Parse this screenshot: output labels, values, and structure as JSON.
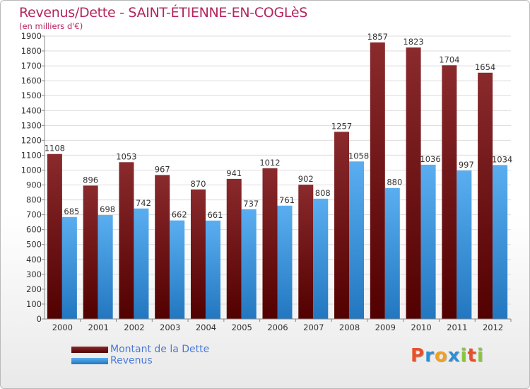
{
  "chart_data": {
    "type": "bar",
    "title": "Revenus/Dette - SAINT-ÉTIENNE-EN-COGLèS",
    "subtitle": "(en milliers d'€)",
    "categories": [
      "2000",
      "2001",
      "2002",
      "2003",
      "2004",
      "2005",
      "2006",
      "2007",
      "2008",
      "2009",
      "2010",
      "2011",
      "2012"
    ],
    "series": [
      {
        "name": "Montant de la Dette",
        "color": "#7d1f22",
        "values": [
          1108,
          896,
          1053,
          967,
          870,
          941,
          1012,
          902,
          1257,
          1857,
          1823,
          1704,
          1654
        ]
      },
      {
        "name": "Revenus",
        "color": "#3d9be0",
        "values": [
          685,
          698,
          742,
          662,
          661,
          737,
          761,
          808,
          1058,
          880,
          1036,
          997,
          1034
        ]
      }
    ],
    "ylim": [
      0,
      1900
    ],
    "yticks": [
      0,
      100,
      200,
      300,
      400,
      500,
      600,
      700,
      800,
      900,
      1000,
      1100,
      1200,
      1300,
      1400,
      1500,
      1600,
      1700,
      1800,
      1900
    ],
    "grid": true,
    "legend_position": "bottom-left"
  },
  "logo": {
    "letters": [
      "P",
      "r",
      "o",
      "x",
      "i",
      "t",
      "i"
    ],
    "colors": [
      "#e8502a",
      "#2e8fd4",
      "#f0a020",
      "#2e8fd4",
      "#8ac43f",
      "#e8502a",
      "#8ac43f"
    ]
  }
}
